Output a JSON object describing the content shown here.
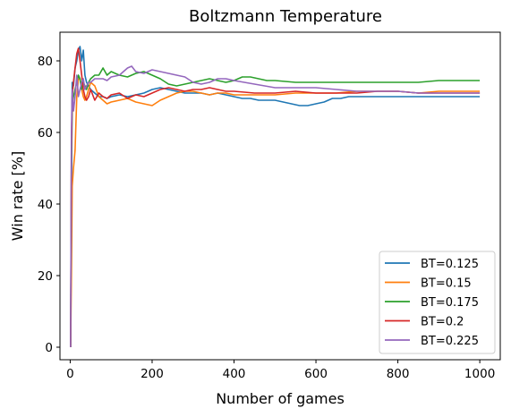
{
  "chart_data": {
    "type": "line",
    "title": "Boltzmann Temperature",
    "xlabel": "Number of games",
    "ylabel": "Win rate [%]",
    "xlim": [
      -25,
      1050
    ],
    "ylim": [
      -3.5,
      88
    ],
    "xticks": [
      "0",
      "200",
      "400",
      "600",
      "800",
      "1000"
    ],
    "yticks": [
      "0",
      "20",
      "40",
      "60",
      "80"
    ],
    "grid": false,
    "legend_position": "bottom-right",
    "series": [
      {
        "name": "BT=0.125",
        "color": "#1f77b4",
        "x": [
          1,
          3,
          5,
          8,
          12,
          16,
          20,
          24,
          28,
          32,
          36,
          40,
          45,
          50,
          60,
          70,
          80,
          90,
          100,
          120,
          140,
          160,
          180,
          200,
          220,
          240,
          260,
          280,
          300,
          320,
          340,
          360,
          380,
          400,
          420,
          440,
          460,
          480,
          500,
          520,
          540,
          560,
          580,
          600,
          620,
          640,
          660,
          680,
          700,
          750,
          800,
          850,
          900,
          950,
          1000
        ],
        "y": [
          0,
          40,
          74,
          73,
          78,
          80,
          83,
          84,
          80,
          83,
          76,
          74,
          73,
          72,
          71,
          70,
          70,
          69.5,
          70,
          70.5,
          70,
          70.5,
          71,
          72,
          72.5,
          72,
          71.5,
          71,
          71,
          71,
          70.5,
          71,
          70.5,
          70,
          69.5,
          69.5,
          69,
          69,
          69,
          68.5,
          68,
          67.5,
          67.5,
          68,
          68.5,
          69.5,
          69.5,
          70,
          70,
          70,
          70,
          70,
          70,
          70,
          70
        ]
      },
      {
        "name": "BT=0.15",
        "color": "#ff7f0e",
        "x": [
          1,
          3,
          5,
          8,
          12,
          16,
          20,
          24,
          28,
          32,
          36,
          40,
          45,
          50,
          60,
          70,
          80,
          90,
          100,
          120,
          140,
          160,
          180,
          200,
          220,
          240,
          260,
          280,
          300,
          320,
          340,
          360,
          380,
          400,
          450,
          500,
          550,
          600,
          650,
          700,
          750,
          800,
          850,
          900,
          950,
          1000
        ],
        "y": [
          0,
          20,
          45,
          50,
          55,
          70,
          75,
          75,
          72,
          70,
          69,
          70,
          72,
          74,
          73,
          70,
          69,
          68,
          68.5,
          69,
          69.5,
          68.5,
          68,
          67.5,
          69,
          70,
          71,
          71.5,
          71.5,
          71,
          70.5,
          71,
          71,
          70.5,
          70.5,
          70.5,
          71,
          71,
          71,
          71.5,
          71.5,
          71.5,
          71,
          71.5,
          71.5,
          71.5
        ]
      },
      {
        "name": "BT=0.175",
        "color": "#2ca02c",
        "x": [
          1,
          3,
          5,
          8,
          12,
          16,
          20,
          24,
          28,
          32,
          36,
          40,
          45,
          50,
          60,
          70,
          80,
          90,
          100,
          120,
          140,
          160,
          180,
          200,
          220,
          240,
          260,
          280,
          300,
          320,
          340,
          360,
          380,
          400,
          420,
          440,
          460,
          480,
          500,
          550,
          600,
          650,
          700,
          750,
          800,
          850,
          900,
          950,
          1000
        ],
        "y": [
          0,
          50,
          68,
          70,
          72,
          74,
          76,
          75,
          72,
          74,
          73,
          72,
          74,
          75,
          76,
          76,
          78,
          76,
          77,
          76,
          75.5,
          76.5,
          77,
          76,
          75,
          73.5,
          73,
          73.5,
          74,
          74.5,
          75,
          74.5,
          74,
          74.5,
          75.5,
          75.5,
          75,
          74.5,
          74.5,
          74,
          74,
          74,
          74,
          74,
          74,
          74,
          74.5,
          74.5,
          74.5
        ]
      },
      {
        "name": "BT=0.2",
        "color": "#d62728",
        "x": [
          1,
          3,
          5,
          8,
          12,
          16,
          20,
          24,
          28,
          32,
          36,
          40,
          45,
          50,
          60,
          70,
          80,
          90,
          100,
          120,
          140,
          160,
          180,
          200,
          220,
          240,
          260,
          280,
          300,
          320,
          340,
          360,
          380,
          400,
          450,
          500,
          550,
          600,
          650,
          700,
          750,
          800,
          850,
          900,
          950,
          1000
        ],
        "y": [
          0,
          55,
          70,
          74,
          78,
          82,
          83.5,
          80,
          76,
          72,
          70,
          69,
          70,
          72,
          69,
          71,
          70,
          69.5,
          70.5,
          71,
          69.5,
          70.5,
          70,
          71,
          72,
          72.5,
          72,
          71.5,
          72,
          72,
          72.5,
          72,
          71.5,
          71.5,
          71,
          71,
          71.5,
          71,
          71,
          71,
          71.5,
          71.5,
          71,
          71,
          71,
          71
        ]
      },
      {
        "name": "BT=0.225",
        "color": "#9467bd",
        "x": [
          1,
          3,
          5,
          8,
          12,
          16,
          20,
          24,
          28,
          32,
          36,
          40,
          45,
          50,
          60,
          70,
          80,
          90,
          100,
          120,
          140,
          150,
          160,
          180,
          200,
          220,
          240,
          260,
          280,
          300,
          320,
          340,
          360,
          380,
          400,
          450,
          500,
          550,
          600,
          650,
          700,
          750,
          800,
          850,
          900,
          950,
          1000
        ],
        "y": [
          0,
          60,
          72,
          66,
          70,
          76,
          70,
          72,
          74,
          75,
          72,
          73,
          74,
          74,
          75,
          75,
          75,
          74.5,
          75.5,
          76,
          78,
          78.5,
          77,
          76.5,
          77.5,
          77,
          76.5,
          76,
          75.5,
          74,
          73.5,
          74,
          75,
          75,
          74.5,
          73.5,
          72.5,
          72.5,
          72.5,
          72,
          71.5,
          71.5,
          71.5,
          71,
          71,
          71,
          71
        ]
      }
    ]
  }
}
